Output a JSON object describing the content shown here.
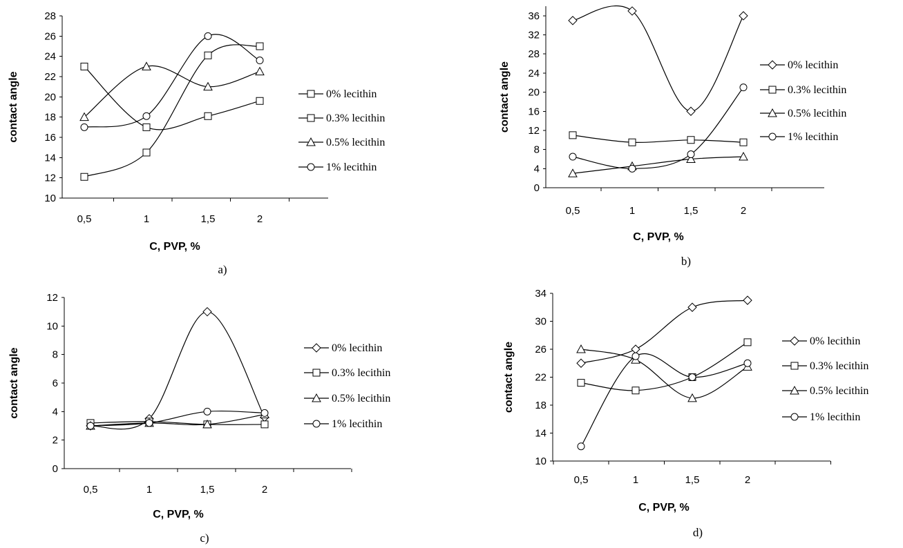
{
  "chart_data": [
    {
      "type": "line",
      "panel_label": "a)",
      "xlabel": "C, PVP, %",
      "ylabel": "contact angle",
      "x": [
        "0,5",
        "1",
        "1,5",
        "2"
      ],
      "ylim": [
        10,
        28
      ],
      "yticks": [
        "10",
        "12",
        "14",
        "16",
        "18",
        "20",
        "22",
        "24",
        "26",
        "28"
      ],
      "legend_position": "right",
      "series": [
        {
          "name": "0% lecithin",
          "marker": "square",
          "values": [
            12.1,
            14.5,
            24.1,
            25.0
          ]
        },
        {
          "name": "0.3% lecithin",
          "marker": "square",
          "values": [
            23.0,
            17.0,
            18.1,
            19.6
          ]
        },
        {
          "name": "0.5% lecithin",
          "marker": "triangle",
          "values": [
            18.0,
            23.0,
            21.0,
            22.5
          ]
        },
        {
          "name": "1% lecithin",
          "marker": "circle",
          "values": [
            17.0,
            18.1,
            26.0,
            23.6
          ]
        }
      ]
    },
    {
      "type": "line",
      "panel_label": "b)",
      "xlabel": "C, PVP, %",
      "ylabel": "contact angle",
      "x": [
        "0,5",
        "1",
        "1,5",
        "2"
      ],
      "ylim": [
        0,
        38
      ],
      "yticks": [
        "0",
        "4",
        "8",
        "12",
        "16",
        "20",
        "24",
        "28",
        "32",
        "36"
      ],
      "legend_position": "right",
      "series": [
        {
          "name": "0% lecithin",
          "marker": "diamond",
          "values": [
            35.0,
            37.0,
            16.0,
            36.0
          ]
        },
        {
          "name": "0.3% lecithin",
          "marker": "square",
          "values": [
            11.0,
            9.5,
            10.0,
            9.5
          ]
        },
        {
          "name": "0.5% lecithin",
          "marker": "triangle",
          "values": [
            3.0,
            4.5,
            6.0,
            6.5
          ]
        },
        {
          "name": "1% lecithin",
          "marker": "circle",
          "values": [
            6.5,
            4.0,
            7.0,
            21.0
          ]
        }
      ]
    },
    {
      "type": "line",
      "panel_label": "c)",
      "xlabel": "C, PVP, %",
      "ylabel": "contact angle",
      "x": [
        "0,5",
        "1",
        "1,5",
        "2"
      ],
      "ylim": [
        0,
        12
      ],
      "yticks": [
        "0",
        "2",
        "4",
        "6",
        "8",
        "10",
        "12"
      ],
      "legend_position": "right",
      "series": [
        {
          "name": "0% lecithin",
          "marker": "diamond",
          "values": [
            3.0,
            3.5,
            11.0,
            3.6
          ]
        },
        {
          "name": "0.3% lecithin",
          "marker": "square",
          "values": [
            3.2,
            3.3,
            3.1,
            3.1
          ]
        },
        {
          "name": "0.5% lecithin",
          "marker": "triangle",
          "values": [
            3.0,
            3.2,
            3.1,
            3.8
          ]
        },
        {
          "name": "1% lecithin",
          "marker": "circle",
          "values": [
            3.0,
            3.2,
            4.0,
            3.9
          ]
        }
      ]
    },
    {
      "type": "line",
      "panel_label": "d)",
      "xlabel": "C, PVP, %",
      "ylabel": "contact angle",
      "x": [
        "0,5",
        "1",
        "1,5",
        "2"
      ],
      "ylim": [
        10,
        34
      ],
      "yticks": [
        "10",
        "14",
        "18",
        "22",
        "26",
        "30",
        "34"
      ],
      "legend_position": "right",
      "series": [
        {
          "name": "0% lecithin",
          "marker": "diamond",
          "values": [
            24.0,
            26.0,
            32.0,
            33.0
          ]
        },
        {
          "name": "0.3% lecithin",
          "marker": "square",
          "values": [
            21.2,
            20.1,
            22.0,
            27.0
          ]
        },
        {
          "name": "0.5% lecithin",
          "marker": "triangle",
          "values": [
            26.0,
            24.5,
            19.0,
            23.5
          ]
        },
        {
          "name": "1% lecithin",
          "marker": "circle",
          "values": [
            12.1,
            25.0,
            22.0,
            24.0
          ]
        }
      ]
    }
  ]
}
